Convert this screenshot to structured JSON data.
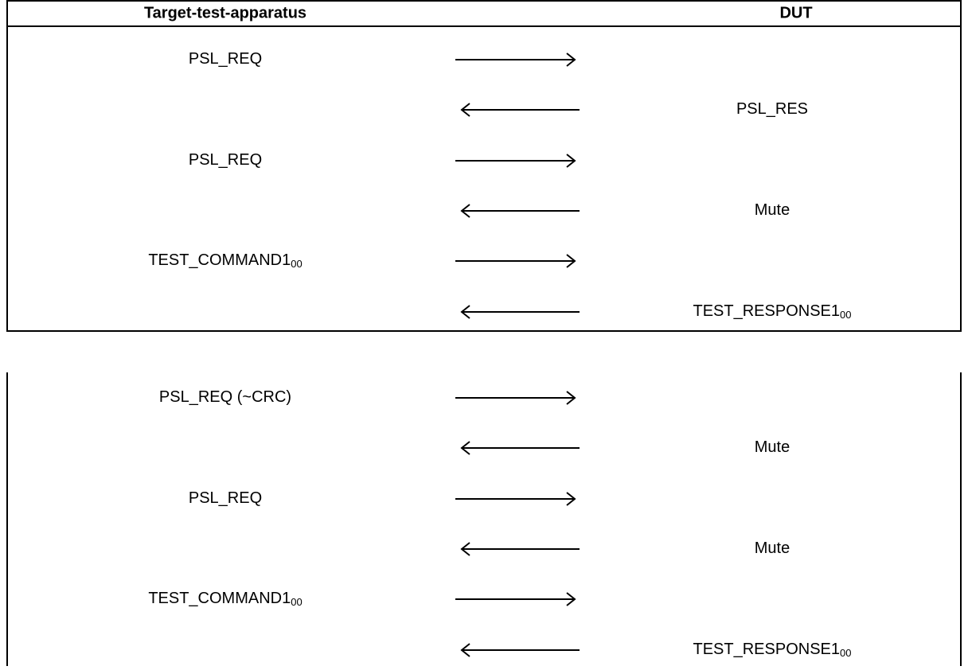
{
  "header": {
    "left": "Target-test-apparatus",
    "right": "DUT"
  },
  "sequences": [
    [
      {
        "left": "PSL_REQ"
      },
      {
        "right": "PSL_RES"
      },
      {
        "left": "PSL_REQ"
      },
      {
        "right": "Mute"
      },
      {
        "left": "TEST_COMMAND1",
        "left_sub": "00"
      },
      {
        "right": "TEST_RESPONSE1",
        "right_sub": "00"
      }
    ],
    [
      {
        "left": "PSL_REQ (~CRC)"
      },
      {
        "right": "Mute"
      },
      {
        "left": "PSL_REQ"
      },
      {
        "right": "Mute"
      },
      {
        "left": "TEST_COMMAND1",
        "left_sub": "00"
      },
      {
        "right": "TEST_RESPONSE1",
        "right_sub": "00"
      }
    ]
  ]
}
